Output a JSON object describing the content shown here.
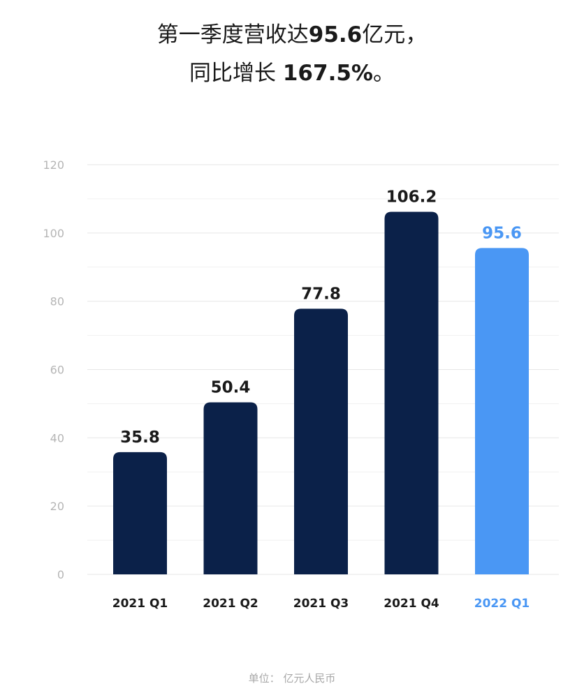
{
  "title": {
    "line1_pre": "第一季度营收达",
    "line1_value": "95.6",
    "line1_post": "亿元，",
    "line2_pre": "同比增长 ",
    "line2_value": "167.5%",
    "line2_post": "。"
  },
  "unit_note": "单位：  亿元人民币",
  "colors": {
    "bar_dark": "#0b2149",
    "bar_highlight": "#4a97f4",
    "text_dark": "#1a1a1a",
    "text_highlight": "#4a97f4",
    "grid": "#e6e6e6",
    "tick": "#b5b5b5"
  },
  "chart_data": {
    "type": "bar",
    "categories": [
      "2021 Q1",
      "2021 Q2",
      "2021 Q3",
      "2021 Q4",
      "2022 Q1"
    ],
    "values": [
      35.8,
      50.4,
      77.8,
      106.2,
      95.6
    ],
    "data_labels": [
      "35.8",
      "50.4",
      "77.8",
      "106.2",
      "95.6"
    ],
    "highlighted_index": 4,
    "ylim": [
      0,
      120
    ],
    "yticks": [
      0,
      20,
      40,
      60,
      80,
      100,
      120
    ],
    "grid": true,
    "xlabel": "",
    "ylabel": ""
  }
}
